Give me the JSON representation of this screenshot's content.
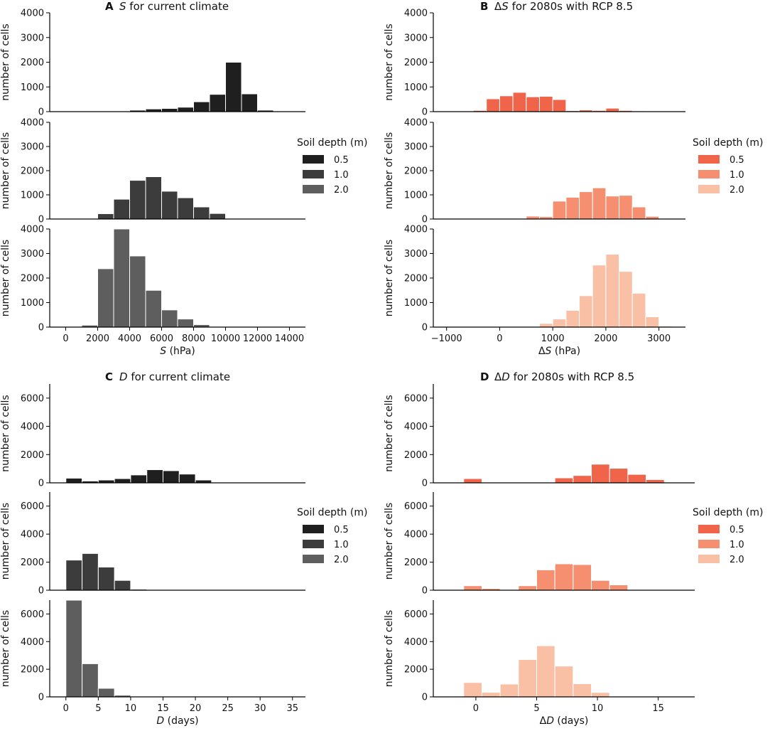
{
  "figure": {
    "legend_title": "Soil depth (m)",
    "legend_entries": [
      "0.5",
      "1.0",
      "2.0"
    ],
    "colors": {
      "gray": [
        "#1f1f1f",
        "#3c3c3c",
        "#5e5e5e"
      ],
      "red": [
        "#f0644a",
        "#f58f70",
        "#f9c0a5"
      ]
    }
  },
  "chart_data": [
    {
      "id": "A",
      "type": "bar",
      "panel_label": "A",
      "title_italic": "S",
      "title_rest": " for current climate",
      "xlabel_italic": "S",
      "xlabel_rest": " (hPa)",
      "ylabel": "number of cells",
      "xlim": [
        -1000,
        15000
      ],
      "ylim": [
        0,
        4000
      ],
      "xticks": [
        0,
        2000,
        4000,
        6000,
        8000,
        10000,
        12000,
        14000
      ],
      "xtick_labels": [
        "0",
        "2000",
        "4000",
        "6000",
        "8000",
        "10000",
        "12000",
        "14000"
      ],
      "yticks": [
        0,
        1000,
        2000,
        3000,
        4000
      ],
      "ytick_labels": [
        "0",
        "1000",
        "2000",
        "3000",
        "4000"
      ],
      "bin_width": 1000,
      "series": [
        {
          "name": "0.5",
          "bins": [
            0,
            1000,
            2000,
            3000,
            4000,
            5000,
            6000,
            7000,
            8000,
            9000,
            10000,
            11000,
            12000,
            13000
          ],
          "values": [
            10,
            10,
            10,
            20,
            60,
            110,
            130,
            180,
            400,
            700,
            2000,
            720,
            60,
            10
          ]
        },
        {
          "name": "1.0",
          "bins": [
            2000,
            3000,
            4000,
            5000,
            6000,
            7000,
            8000,
            9000
          ],
          "values": [
            220,
            820,
            1600,
            1750,
            1150,
            880,
            500,
            230
          ]
        },
        {
          "name": "2.0",
          "bins": [
            1000,
            2000,
            3000,
            4000,
            5000,
            6000,
            7000,
            8000
          ],
          "values": [
            80,
            2380,
            4000,
            2900,
            1500,
            700,
            330,
            100
          ]
        }
      ]
    },
    {
      "id": "B",
      "type": "bar",
      "panel_label": "B",
      "title_prefix": "Δ",
      "title_italic": "S",
      "title_rest": " for 2080s with RCP 8.5",
      "xlabel_prefix": "Δ",
      "xlabel_italic": "S",
      "xlabel_rest": " (hPa)",
      "ylabel": "number of cells",
      "xlim": [
        -1250,
        3500
      ],
      "ylim": [
        0,
        4000
      ],
      "xticks": [
        -1000,
        0,
        1000,
        2000,
        3000
      ],
      "xtick_labels": [
        "−1000",
        "0",
        "1000",
        "2000",
        "3000"
      ],
      "yticks": [
        0,
        1000,
        2000,
        3000,
        4000
      ],
      "ytick_labels": [
        "0",
        "1000",
        "2000",
        "3000",
        "4000"
      ],
      "bin_width": 250,
      "series": [
        {
          "name": "0.5",
          "bins": [
            -500,
            -250,
            0,
            250,
            500,
            750,
            1000,
            1250,
            1500,
            1750,
            2000,
            2250,
            2500,
            2750
          ],
          "values": [
            50,
            520,
            640,
            780,
            600,
            620,
            490,
            40,
            70,
            50,
            140,
            50,
            30,
            10
          ]
        },
        {
          "name": "1.0",
          "bins": [
            500,
            750,
            1000,
            1250,
            1500,
            1750,
            2000,
            2250,
            2500,
            2750
          ],
          "values": [
            120,
            100,
            740,
            900,
            1130,
            1290,
            950,
            980,
            500,
            110
          ]
        },
        {
          "name": "2.0",
          "bins": [
            750,
            1000,
            1250,
            1500,
            1750,
            2000,
            2250,
            2500,
            2750,
            3000
          ],
          "values": [
            150,
            330,
            680,
            1280,
            2530,
            2970,
            2270,
            1380,
            420,
            40
          ]
        }
      ]
    },
    {
      "id": "C",
      "type": "bar",
      "panel_label": "C",
      "title_italic": "D",
      "title_rest": " for current climate",
      "xlabel_italic": "D",
      "xlabel_rest": " (days)",
      "ylabel": "number of cells",
      "xlim": [
        -2.5,
        37
      ],
      "ylim": [
        0,
        7000
      ],
      "xticks": [
        0,
        5,
        10,
        15,
        20,
        25,
        30,
        35
      ],
      "xtick_labels": [
        "0",
        "5",
        "10",
        "15",
        "20",
        "25",
        "30",
        "35"
      ],
      "yticks": [
        0,
        2000,
        4000,
        6000
      ],
      "ytick_labels": [
        "0",
        "2000",
        "4000",
        "6000"
      ],
      "bin_width": 2.5,
      "series": [
        {
          "name": "0.5",
          "bins": [
            0,
            2.5,
            5,
            7.5,
            10,
            12.5,
            15,
            17.5,
            20,
            22.5,
            25,
            27.5,
            30,
            32.5
          ],
          "values": [
            330,
            130,
            200,
            300,
            560,
            930,
            860,
            620,
            200,
            30,
            10,
            10,
            10,
            10
          ]
        },
        {
          "name": "1.0",
          "bins": [
            0,
            2.5,
            5,
            7.5,
            10,
            12.5,
            15,
            17.5,
            20,
            22.5,
            25,
            27.5,
            30,
            32.5
          ],
          "values": [
            2150,
            2620,
            1650,
            700,
            70,
            20,
            10,
            10,
            10,
            10,
            10,
            10,
            10,
            10
          ]
        },
        {
          "name": "2.0",
          "bins": [
            0,
            2.5,
            5,
            7.5,
            10,
            12.5,
            15,
            17.5,
            20,
            22.5,
            25,
            27.5,
            30,
            32.5
          ],
          "values": [
            7000,
            2400,
            620,
            120,
            20,
            10,
            10,
            10,
            10,
            10,
            10,
            10,
            10,
            10
          ]
        }
      ]
    },
    {
      "id": "D",
      "type": "bar",
      "panel_label": "D",
      "title_prefix": "Δ",
      "title_italic": "D",
      "title_rest": " for 2080s with RCP 8.5",
      "xlabel_prefix": "Δ",
      "xlabel_italic": "D",
      "xlabel_rest": " (days)",
      "ylabel": "number of cells",
      "xlim": [
        -3.5,
        18
      ],
      "ylim": [
        0,
        7000
      ],
      "xticks": [
        0,
        5,
        10,
        15
      ],
      "xtick_labels": [
        "0",
        "5",
        "10",
        "15"
      ],
      "yticks": [
        0,
        2000,
        4000,
        6000
      ],
      "ytick_labels": [
        "0",
        "2000",
        "4000",
        "6000"
      ],
      "bin_width": 1.5,
      "series": [
        {
          "name": "0.5",
          "bins": [
            -1,
            0.5,
            2,
            3.5,
            5,
            6.5,
            8,
            9.5,
            11,
            12.5,
            14
          ],
          "values": [
            300,
            10,
            10,
            10,
            10,
            350,
            520,
            1320,
            1030,
            600,
            230
          ]
        },
        {
          "name": "1.0",
          "bins": [
            -1,
            0.5,
            2,
            3.5,
            5,
            6.5,
            8,
            9.5,
            11
          ],
          "values": [
            320,
            120,
            20,
            320,
            1450,
            1880,
            1830,
            700,
            380
          ]
        },
        {
          "name": "2.0",
          "bins": [
            -1,
            0.5,
            2,
            3.5,
            5,
            6.5,
            8,
            9.5
          ],
          "values": [
            1040,
            330,
            930,
            2700,
            3700,
            2230,
            950,
            320
          ]
        }
      ]
    }
  ]
}
